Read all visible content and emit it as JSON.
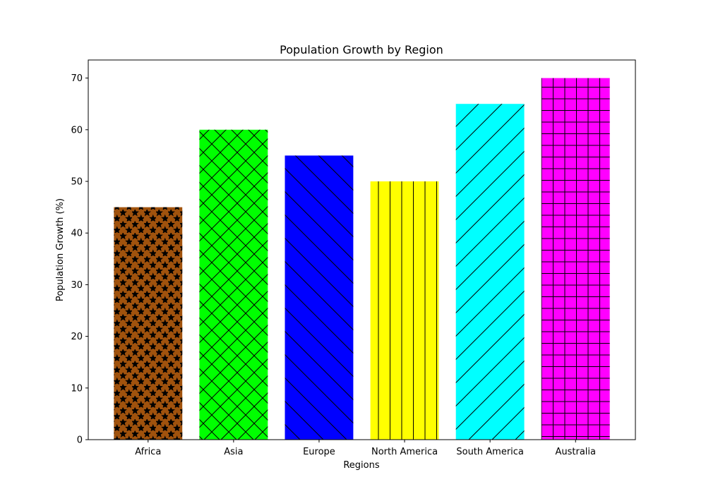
{
  "chart_data": {
    "type": "bar",
    "title": "Population Growth by Region",
    "xlabel": "Regions",
    "ylabel": "Population Growth (%)",
    "categories": [
      "Africa",
      "Asia",
      "Europe",
      "North America",
      "South America",
      "Australia"
    ],
    "values": [
      45,
      60,
      55,
      50,
      65,
      70
    ],
    "colors": [
      "#a0520d",
      "#00ff00",
      "#0000ff",
      "#ffff00",
      "#00ffff",
      "#ff00ff"
    ],
    "hatches": [
      "star",
      "cross-diagonal",
      "back-diagonal",
      "vertical",
      "forward-diagonal",
      "grid"
    ],
    "ylim": [
      0,
      73.5
    ],
    "yticks": [
      0,
      10,
      20,
      30,
      40,
      50,
      60,
      70
    ],
    "grid": false,
    "legend": "none"
  }
}
